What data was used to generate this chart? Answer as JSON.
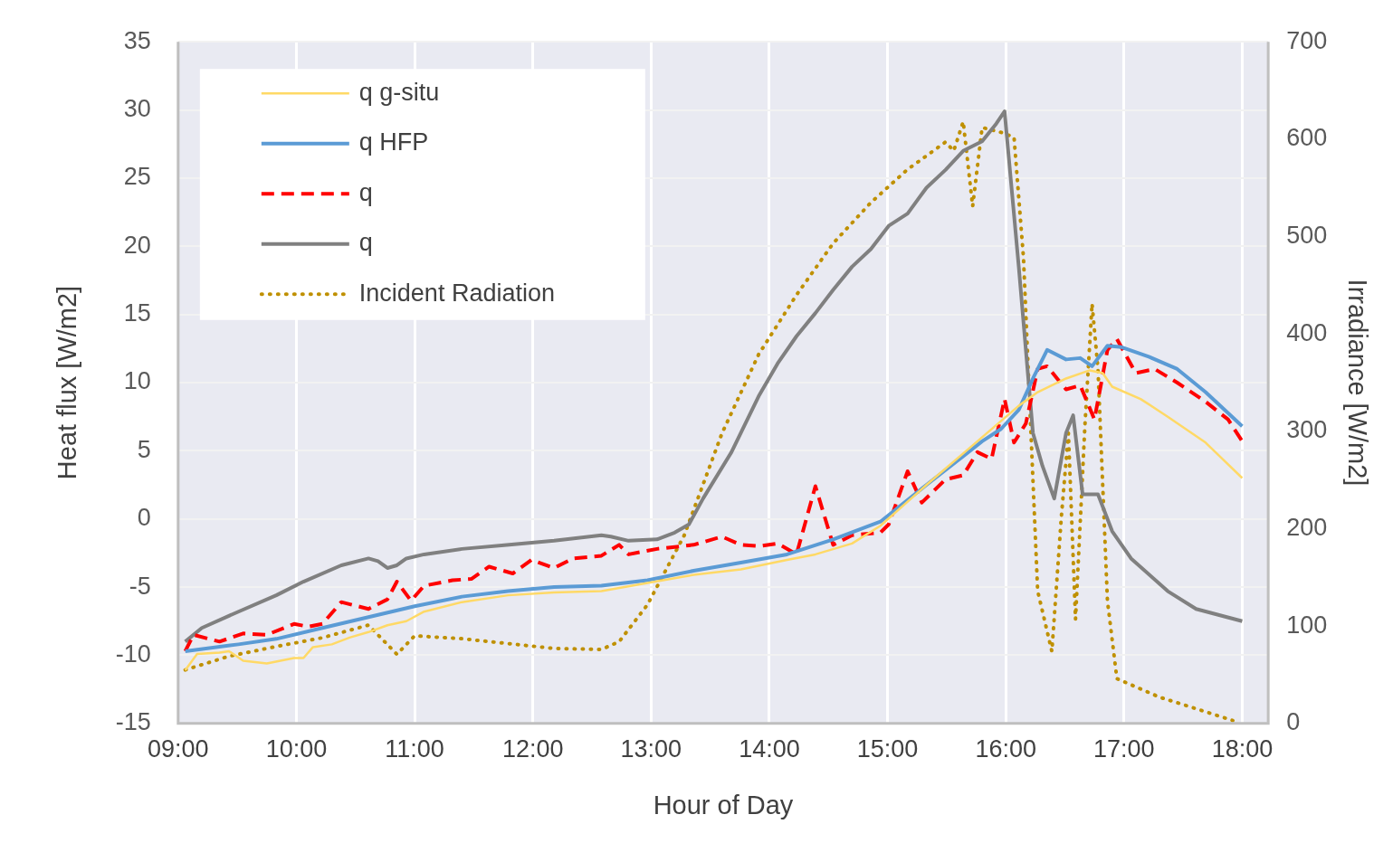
{
  "chart_data": {
    "type": "line",
    "xlabel": "Hour of Day",
    "ylabel": "Heat flux [W/m2]",
    "y2label": "Irradiance [W/m2]",
    "xlim": [
      9,
      18.22
    ],
    "xticks": [
      {
        "value": 9,
        "label": "09:00"
      },
      {
        "value": 10,
        "label": "10:00"
      },
      {
        "value": 11,
        "label": "11:00"
      },
      {
        "value": 12,
        "label": "12:00"
      },
      {
        "value": 13,
        "label": "13:00"
      },
      {
        "value": 14,
        "label": "14:00"
      },
      {
        "value": 15,
        "label": "15:00"
      },
      {
        "value": 16,
        "label": "16:00"
      },
      {
        "value": 17,
        "label": "17:00"
      },
      {
        "value": 18,
        "label": "18:00"
      }
    ],
    "ylim": [
      -15,
      35
    ],
    "yticks": [
      -15,
      -10,
      -5,
      0,
      5,
      10,
      15,
      20,
      25,
      30,
      35
    ],
    "y2lim": [
      0,
      700
    ],
    "y2ticks": [
      0,
      100,
      200,
      300,
      400,
      500,
      600,
      700
    ],
    "grid": true,
    "legend": "top left",
    "marker": "none",
    "series": [
      {
        "name": "q g-situ",
        "color": "#ffd966",
        "line_style": "solid",
        "x": [
          9.06,
          9.16,
          9.35,
          9.43,
          9.55,
          9.75,
          9.98,
          10.06,
          10.14,
          10.3,
          10.45,
          10.61,
          10.77,
          10.93,
          11.08,
          11.4,
          11.79,
          12.18,
          12.58,
          12.97,
          13.36,
          13.76,
          14.15,
          14.39,
          14.7,
          14.94,
          15.33,
          15.72,
          16.11,
          16.27,
          16.51,
          16.71,
          16.82,
          16.9,
          17.14,
          17.37,
          17.69,
          18.0
        ],
        "values": [
          -11.1,
          -9.9,
          -9.8,
          -9.7,
          -10.4,
          -10.6,
          -10.2,
          -10.2,
          -9.4,
          -9.2,
          -8.7,
          -8.3,
          -7.8,
          -7.5,
          -6.8,
          -6.1,
          -5.6,
          -5.4,
          -5.3,
          -4.7,
          -4.1,
          -3.7,
          -3.0,
          -2.6,
          -1.8,
          -0.5,
          2.5,
          5.4,
          8.3,
          9.3,
          10.3,
          10.9,
          10.7,
          9.7,
          8.8,
          7.5,
          5.6,
          3.0
        ]
      },
      {
        "name": "q HFP",
        "color": "#5b9bd5",
        "line_style": "solid",
        "x": [
          9.06,
          9.51,
          9.83,
          10.22,
          10.61,
          11.0,
          11.4,
          11.79,
          12.18,
          12.58,
          12.97,
          13.36,
          13.76,
          14.15,
          14.54,
          14.94,
          15.33,
          15.64,
          15.8,
          15.96,
          16.11,
          16.23,
          16.35,
          16.51,
          16.63,
          16.73,
          16.86,
          16.98,
          17.21,
          17.45,
          17.69,
          18.0
        ],
        "values": [
          -9.7,
          -9.2,
          -8.8,
          -8.0,
          -7.2,
          -6.4,
          -5.7,
          -5.3,
          -5.0,
          -4.9,
          -4.5,
          -3.8,
          -3.2,
          -2.6,
          -1.5,
          -0.2,
          2.5,
          4.6,
          5.7,
          6.6,
          8.0,
          10.3,
          12.4,
          11.7,
          11.8,
          11.2,
          12.7,
          12.6,
          11.9,
          11.0,
          9.3,
          6.8
        ]
      },
      {
        "name": "q",
        "color": "#ff0000",
        "line_style": "dashed",
        "x": [
          9.06,
          9.13,
          9.35,
          9.55,
          9.75,
          9.98,
          10.1,
          10.22,
          10.38,
          10.61,
          10.77,
          10.85,
          10.97,
          11.08,
          11.32,
          11.48,
          11.63,
          11.83,
          11.99,
          12.18,
          12.34,
          12.58,
          12.73,
          12.81,
          13.05,
          13.36,
          13.6,
          13.76,
          13.91,
          14.07,
          14.23,
          14.39,
          14.54,
          14.7,
          14.94,
          15.01,
          15.17,
          15.29,
          15.49,
          15.64,
          15.76,
          15.88,
          15.99,
          16.07,
          16.17,
          16.27,
          16.35,
          16.51,
          16.63,
          16.75,
          16.86,
          16.94,
          17.1,
          17.26,
          17.45,
          17.69,
          17.88,
          18.0
        ],
        "values": [
          -9.7,
          -8.5,
          -9.0,
          -8.4,
          -8.5,
          -7.7,
          -7.9,
          -7.7,
          -6.1,
          -6.6,
          -5.9,
          -4.6,
          -6.0,
          -4.9,
          -4.5,
          -4.4,
          -3.5,
          -4.0,
          -3.0,
          -3.6,
          -2.9,
          -2.7,
          -1.9,
          -2.6,
          -2.2,
          -1.9,
          -1.3,
          -1.9,
          -2.0,
          -1.8,
          -2.6,
          2.4,
          -1.9,
          -1.2,
          -1.0,
          -0.4,
          3.5,
          1.2,
          2.9,
          3.2,
          4.9,
          4.4,
          8.8,
          5.6,
          7.0,
          11.0,
          11.2,
          9.5,
          9.8,
          7.3,
          12.4,
          13.2,
          10.7,
          11.0,
          10.0,
          8.6,
          7.3,
          5.7
        ]
      },
      {
        "name": "q",
        "color": "#808080",
        "line_style": "solid",
        "x": [
          9.06,
          9.2,
          9.51,
          9.83,
          10.06,
          10.38,
          10.61,
          10.69,
          10.77,
          10.85,
          10.93,
          11.08,
          11.4,
          11.8,
          12.18,
          12.58,
          12.66,
          12.81,
          13.05,
          13.2,
          13.32,
          13.44,
          13.68,
          13.91,
          14.07,
          14.23,
          14.39,
          14.54,
          14.7,
          14.86,
          15.01,
          15.17,
          15.33,
          15.49,
          15.64,
          15.8,
          15.92,
          15.99,
          16.11,
          16.23,
          16.31,
          16.41,
          16.51,
          16.57,
          16.65,
          16.78,
          16.9,
          17.06,
          17.37,
          17.61,
          18.0
        ],
        "values": [
          -9.0,
          -8.0,
          -6.8,
          -5.6,
          -4.6,
          -3.4,
          -2.9,
          -3.1,
          -3.6,
          -3.4,
          -2.9,
          -2.6,
          -2.2,
          -1.9,
          -1.6,
          -1.2,
          -1.3,
          -1.6,
          -1.5,
          -1.0,
          -0.4,
          1.5,
          4.9,
          9.0,
          11.4,
          13.4,
          15.1,
          16.8,
          18.5,
          19.8,
          21.5,
          22.4,
          24.3,
          25.6,
          27.0,
          27.7,
          29.0,
          29.9,
          18.5,
          6.3,
          3.9,
          1.5,
          6.3,
          7.6,
          1.8,
          1.8,
          -0.9,
          -2.9,
          -5.3,
          -6.6,
          -7.5
        ]
      },
      {
        "name": "Incident Radiation",
        "color": "#bf9000",
        "line_style": "dotted",
        "axis": "y2",
        "x": [
          9.06,
          9.43,
          9.83,
          10.22,
          10.61,
          10.73,
          10.85,
          11.0,
          11.4,
          11.79,
          12.18,
          12.58,
          12.73,
          12.97,
          13.28,
          13.6,
          13.91,
          14.23,
          14.54,
          14.86,
          15.17,
          15.49,
          15.56,
          15.64,
          15.72,
          15.8,
          15.96,
          16.07,
          16.15,
          16.27,
          16.39,
          16.47,
          16.53,
          16.59,
          16.67,
          16.73,
          16.78,
          16.86,
          16.94,
          17.3,
          17.69,
          17.92
        ],
        "values": [
          55,
          69,
          79,
          88,
          101,
          86,
          71,
          90,
          87,
          82,
          77,
          76,
          84,
          122,
          193,
          298,
          379,
          440,
          493,
          535,
          569,
          597,
          588,
          618,
          531,
          612,
          607,
          602,
          478,
          136,
          74,
          212,
          298,
          107,
          307,
          431,
          364,
          126,
          46,
          27,
          12,
          3
        ]
      }
    ]
  }
}
